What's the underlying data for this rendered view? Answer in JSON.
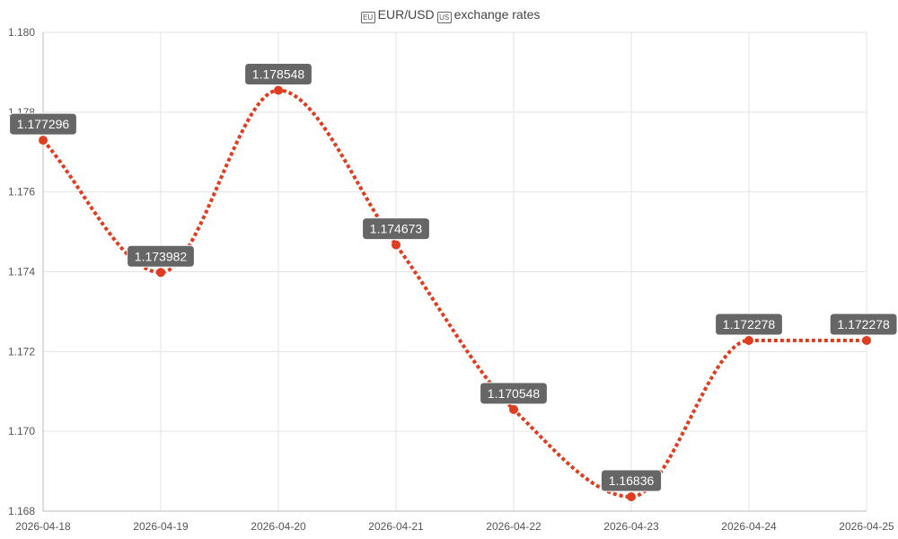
{
  "chart_data": {
    "type": "line",
    "title": "EUR/USD exchange rates",
    "title_parts": {
      "base": "EUR",
      "quote": "USD",
      "suffix": "exchange rates"
    },
    "title_icons": [
      "eu-flag-icon",
      "us-flag-icon"
    ],
    "x": [
      "2026-04-18",
      "2026-04-19",
      "2026-04-20",
      "2026-04-21",
      "2026-04-22",
      "2026-04-23",
      "2026-04-24",
      "2026-04-25"
    ],
    "series": [
      {
        "values": [
          1.177296,
          1.173982,
          1.178548,
          1.174673,
          1.170548,
          1.16836,
          1.172278,
          1.172278
        ],
        "labels": [
          "1.177296",
          "1.173982",
          "1.178548",
          "1.174673",
          "1.170548",
          "1.16836",
          "1.172278",
          "1.172278"
        ],
        "color": "#e03c1f",
        "style": "dotted"
      }
    ],
    "ylim": [
      1.168,
      1.18
    ],
    "yticks": [
      "1.168",
      "1.170",
      "1.172",
      "1.174",
      "1.176",
      "1.178",
      "1.180"
    ],
    "grid": true,
    "legend": "none"
  }
}
